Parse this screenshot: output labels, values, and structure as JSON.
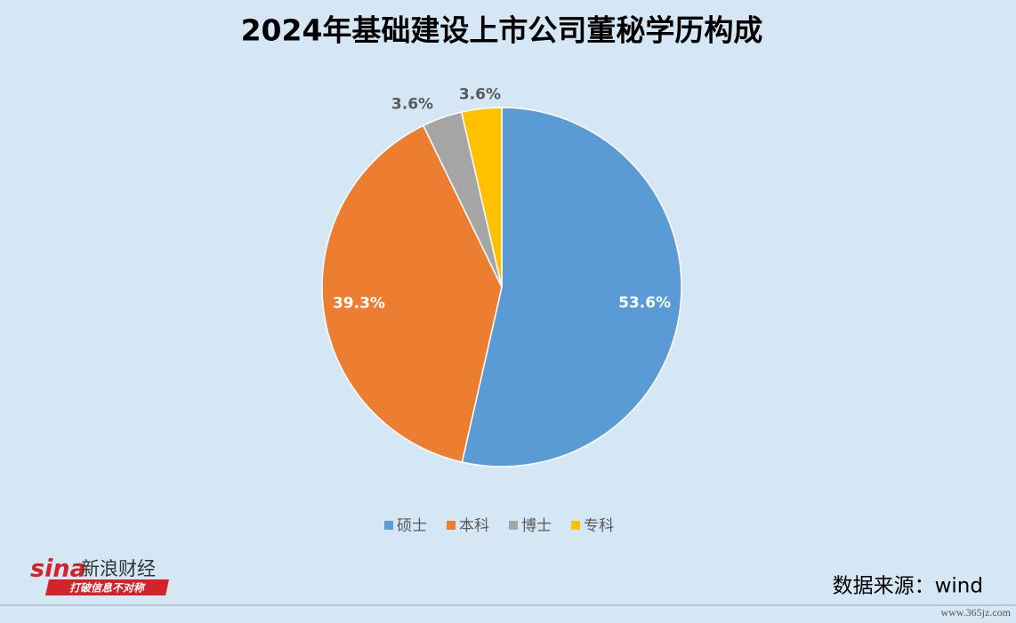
{
  "chart_data": {
    "type": "pie",
    "title": "2024年基础建设上市公司董秘学历构成",
    "categories": [
      "硕士",
      "本科",
      "博士",
      "专科"
    ],
    "values": [
      53.6,
      39.3,
      3.6,
      3.6
    ],
    "value_labels": [
      "53.6%",
      "39.3%",
      "3.6%",
      "3.6%"
    ],
    "colors": [
      "#5b9bd5",
      "#ed7d31",
      "#a5a5a5",
      "#ffc000"
    ],
    "legend": "bottom",
    "source": "数据来源：wind"
  },
  "branding": {
    "logo": "sina",
    "name": "新浪财经",
    "slogan": "打破信息不对称",
    "watermark": "www.365jz.com"
  }
}
